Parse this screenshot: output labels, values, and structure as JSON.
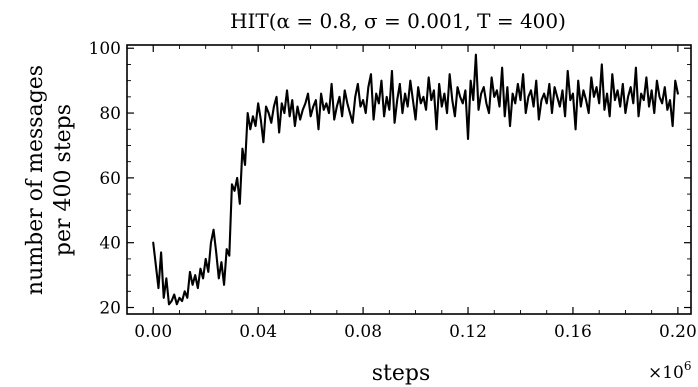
{
  "chart_data": {
    "type": "line",
    "title": "HIT(α = 0.8, σ = 0.001, T = 400)",
    "xlabel": "steps",
    "x_multiplier": "×10",
    "x_multiplier_exp": "6",
    "ylabel_line1": "number of messages",
    "ylabel_line2": "per 400 steps",
    "xlim": [
      -0.01,
      0.205
    ],
    "ylim": [
      18,
      101
    ],
    "xticks": [
      0.0,
      0.04,
      0.08,
      0.12,
      0.16,
      0.2
    ],
    "xtick_labels": [
      "0.00",
      "0.04",
      "0.08",
      "0.12",
      "0.16",
      "0.20"
    ],
    "yticks": [
      20,
      40,
      60,
      80,
      100
    ],
    "ytick_labels": [
      "20",
      "40",
      "60",
      "80",
      "100"
    ],
    "grid": false,
    "colors": {
      "line": "#000000",
      "axes": "#000000",
      "background": "#ffffff"
    },
    "series": [
      {
        "x": [
          0.0,
          0.001,
          0.002,
          0.003,
          0.004,
          0.005,
          0.006,
          0.007,
          0.008,
          0.009,
          0.01,
          0.011,
          0.012,
          0.013,
          0.014,
          0.015,
          0.016,
          0.017,
          0.018,
          0.019,
          0.02,
          0.021,
          0.022,
          0.023,
          0.024,
          0.025,
          0.026,
          0.027,
          0.028,
          0.029,
          0.03,
          0.031,
          0.032,
          0.033,
          0.034,
          0.035,
          0.036,
          0.037,
          0.038,
          0.039,
          0.04,
          0.041,
          0.042,
          0.043,
          0.044,
          0.045,
          0.046,
          0.047,
          0.048,
          0.049,
          0.05,
          0.051,
          0.052,
          0.053,
          0.054,
          0.055,
          0.056,
          0.057,
          0.058,
          0.059,
          0.06,
          0.061,
          0.062,
          0.063,
          0.064,
          0.065,
          0.066,
          0.067,
          0.068,
          0.069,
          0.07,
          0.071,
          0.072,
          0.073,
          0.074,
          0.075,
          0.076,
          0.077,
          0.078,
          0.079,
          0.08,
          0.081,
          0.082,
          0.083,
          0.084,
          0.085,
          0.086,
          0.087,
          0.088,
          0.089,
          0.09,
          0.091,
          0.092,
          0.093,
          0.094,
          0.095,
          0.096,
          0.097,
          0.098,
          0.099,
          0.1,
          0.101,
          0.102,
          0.103,
          0.104,
          0.105,
          0.106,
          0.107,
          0.108,
          0.109,
          0.11,
          0.111,
          0.112,
          0.113,
          0.114,
          0.115,
          0.116,
          0.117,
          0.118,
          0.119,
          0.12,
          0.121,
          0.122,
          0.123,
          0.124,
          0.125,
          0.126,
          0.127,
          0.128,
          0.129,
          0.13,
          0.131,
          0.132,
          0.133,
          0.134,
          0.135,
          0.136,
          0.137,
          0.138,
          0.139,
          0.14,
          0.141,
          0.142,
          0.143,
          0.144,
          0.145,
          0.146,
          0.147,
          0.148,
          0.149,
          0.15,
          0.151,
          0.152,
          0.153,
          0.154,
          0.155,
          0.156,
          0.157,
          0.158,
          0.159,
          0.16,
          0.161,
          0.162,
          0.163,
          0.164,
          0.165,
          0.166,
          0.167,
          0.168,
          0.169,
          0.17,
          0.171,
          0.172,
          0.173,
          0.174,
          0.175,
          0.176,
          0.177,
          0.178,
          0.179,
          0.18,
          0.181,
          0.182,
          0.183,
          0.184,
          0.185,
          0.186,
          0.187,
          0.188,
          0.189,
          0.19,
          0.191,
          0.192,
          0.193,
          0.194,
          0.195,
          0.196,
          0.197,
          0.198,
          0.199,
          0.2
        ],
        "values": [
          40,
          33,
          26,
          37,
          23,
          29,
          21,
          22,
          24,
          21,
          23,
          22,
          25,
          23,
          31,
          27,
          30,
          26,
          32,
          29,
          35,
          31,
          40,
          44,
          37,
          29,
          34,
          27,
          38,
          36,
          58,
          56,
          60,
          52,
          69,
          64,
          80,
          75,
          79,
          76,
          83,
          78,
          71,
          82,
          80,
          77,
          82,
          85,
          74,
          83,
          80,
          87,
          79,
          84,
          76,
          82,
          78,
          81,
          83,
          86,
          79,
          82,
          84,
          75,
          86,
          81,
          83,
          80,
          89,
          78,
          82,
          85,
          79,
          87,
          83,
          80,
          77,
          85,
          89,
          82,
          84,
          80,
          88,
          92,
          78,
          86,
          83,
          90,
          79,
          85,
          81,
          93,
          77,
          84,
          89,
          80,
          86,
          82,
          90,
          84,
          78,
          88,
          83,
          85,
          81,
          91,
          84,
          87,
          75,
          89,
          82,
          86,
          80,
          92,
          84,
          79,
          88,
          85,
          83,
          87,
          72,
          90,
          84,
          98,
          81,
          86,
          88,
          83,
          80,
          91,
          85,
          87,
          82,
          94,
          79,
          88,
          76,
          86,
          83,
          89,
          84,
          92,
          80,
          85,
          87,
          82,
          90,
          78,
          84,
          86,
          83,
          89,
          80,
          88,
          85,
          82,
          87,
          79,
          93,
          84,
          86,
          75,
          90,
          82,
          87,
          84,
          80,
          91,
          85,
          88,
          83,
          95,
          81,
          86,
          79,
          92,
          84,
          87,
          82,
          89,
          80,
          85,
          88,
          83,
          94,
          79,
          86,
          84,
          91,
          82,
          87,
          80,
          90,
          85,
          83,
          88,
          81,
          84,
          76,
          90,
          86
        ]
      }
    ]
  }
}
